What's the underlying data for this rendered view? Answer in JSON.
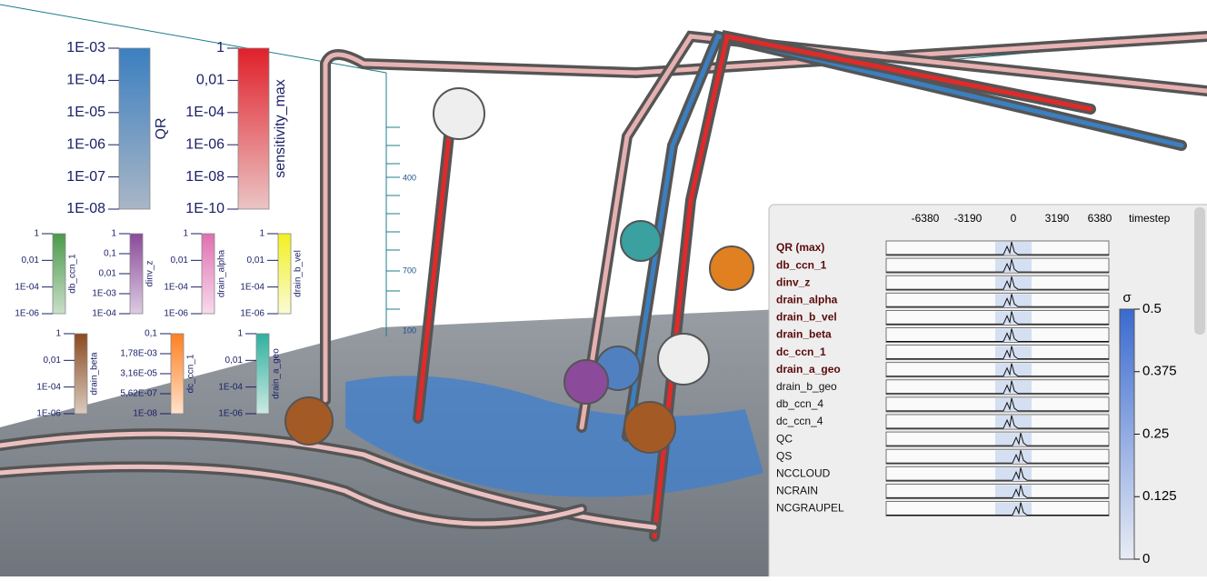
{
  "colorbars": [
    {
      "label": "QR",
      "ticks": [
        "1E-03",
        "1E-04",
        "1E-05",
        "1E-06",
        "1E-07",
        "1E-08"
      ],
      "colors": [
        "#3b7fc0",
        "#a9b6c6"
      ]
    },
    {
      "label": "sensitivity_max",
      "ticks": [
        "1",
        "0,01",
        "1E-04",
        "1E-06",
        "1E-08",
        "1E-10"
      ],
      "colors": [
        "#e0202a",
        "#ebc4c4"
      ]
    },
    {
      "label": "db_ccn_1",
      "ticks": [
        "1",
        "0,01",
        "1E-04",
        "1E-06"
      ],
      "colors": [
        "#4a9a4a",
        "#c9dfc9"
      ]
    },
    {
      "label": "dinv_z",
      "ticks": [
        "1",
        "0,1",
        "0,01",
        "1E-03",
        "1E-04"
      ],
      "colors": [
        "#8b4a9a",
        "#dccbe2"
      ]
    },
    {
      "label": "drain_alpha",
      "ticks": [
        "1",
        "0,01",
        "1E-04",
        "1E-06"
      ],
      "colors": [
        "#e070b0",
        "#f7dbec"
      ]
    },
    {
      "label": "drain_b_vel",
      "ticks": [
        "1",
        "0,01",
        "1E-04",
        "1E-06"
      ],
      "colors": [
        "#f2f020",
        "#fbfbd4"
      ]
    },
    {
      "label": "drain_beta",
      "ticks": [
        "1",
        "0,01",
        "1E-04",
        "1E-06"
      ],
      "colors": [
        "#8b4a20",
        "#dacbbf"
      ]
    },
    {
      "label": "dc_ccn_1",
      "ticks": [
        "0,1",
        "1,78E-03",
        "3,16E-05",
        "5,62E-07",
        "1E-08"
      ],
      "colors": [
        "#ff8020",
        "#ffe2cc"
      ]
    },
    {
      "label": "drain_a_geo",
      "ticks": [
        "1",
        "0,01",
        "1E-04",
        "1E-06"
      ],
      "colors": [
        "#30b0a0",
        "#cbe9e2"
      ]
    }
  ],
  "pressure_ticks": [
    "400",
    "700",
    "100"
  ],
  "panel": {
    "time_ticks": [
      "-6380",
      "-3190",
      "0",
      "3190",
      "6380"
    ],
    "time_label": "timestep",
    "rows": [
      "QR (max)",
      "db_ccn_1",
      "dinv_z",
      "drain_alpha",
      "drain_b_vel",
      "drain_beta",
      "dc_ccn_1",
      "drain_a_geo",
      "drain_b_geo",
      "db_ccn_4",
      "dc_ccn_4",
      "QC",
      "QS",
      "NCCLOUD",
      "NCRAIN",
      "NCGRAUPEL"
    ],
    "highlighted_rows": 8,
    "sigma": {
      "title": "σ",
      "ticks": [
        0.5,
        0.375,
        0.25,
        0.125,
        0
      ],
      "lim": [
        0,
        0.5
      ],
      "colors": [
        "#e8ecf4",
        "#3a6ad0"
      ]
    }
  }
}
